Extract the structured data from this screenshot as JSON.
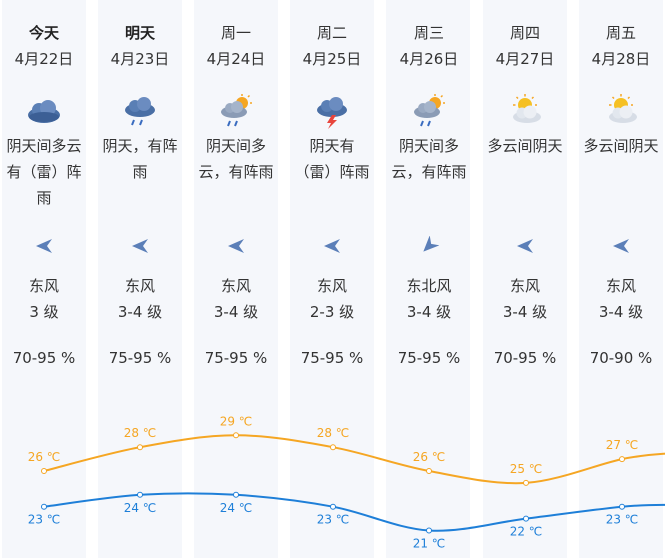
{
  "days": [
    {
      "day": "今天",
      "date": "4月22日",
      "desc": [
        "阴天间多云",
        "有（雷）阵",
        "雨"
      ],
      "weather_icon": "overcast-cloud-icon",
      "wind_dir": "东风",
      "wind_level": "3 级",
      "humidity": "70-95 %",
      "high": "26 ℃",
      "low": "23 ℃"
    },
    {
      "day": "明天",
      "date": "4月23日",
      "desc": [
        "阴天，有阵",
        "雨"
      ],
      "weather_icon": "rain-cloud-icon",
      "wind_dir": "东风",
      "wind_level": "3-4 级",
      "humidity": "75-95 %",
      "high": "28 ℃",
      "low": "24 ℃"
    },
    {
      "day": "周一",
      "date": "4月24日",
      "desc": [
        "阴天间多",
        "云，有阵雨"
      ],
      "weather_icon": "sun-cloud-rain-icon",
      "wind_dir": "东风",
      "wind_level": "3-4 级",
      "humidity": "75-95 %",
      "high": "29 ℃",
      "low": "24 ℃"
    },
    {
      "day": "周二",
      "date": "4月25日",
      "desc": [
        "阴天有",
        "（雷）阵雨"
      ],
      "weather_icon": "thunder-cloud-icon",
      "wind_dir": "东风",
      "wind_level": "2-3 级",
      "humidity": "75-95 %",
      "high": "28 ℃",
      "low": "23 ℃"
    },
    {
      "day": "周三",
      "date": "4月26日",
      "desc": [
        "阴天间多",
        "云，有阵雨"
      ],
      "weather_icon": "sun-cloud-rain-icon",
      "wind_dir": "东北风",
      "wind_level": "3-4 级",
      "humidity": "75-95 %",
      "high": "26 ℃",
      "low": "21 ℃"
    },
    {
      "day": "周四",
      "date": "4月27日",
      "desc": [
        "多云间阴天"
      ],
      "weather_icon": "partly-cloudy-icon",
      "wind_dir": "东风",
      "wind_level": "3-4 级",
      "humidity": "70-95 %",
      "high": "25 ℃",
      "low": "22 ℃"
    },
    {
      "day": "周五",
      "date": "4月28日",
      "desc": [
        "多云间阴天"
      ],
      "weather_icon": "partly-cloudy-icon",
      "wind_dir": "东风",
      "wind_level": "3-4 级",
      "humidity": "70-90 %",
      "high": "27 ℃",
      "low": "23 ℃"
    }
  ],
  "chart_data": {
    "type": "line",
    "categories": [
      "4月22日",
      "4月23日",
      "4月24日",
      "4月25日",
      "4月26日",
      "4月27日",
      "4月28日"
    ],
    "series": [
      {
        "values": [
          26,
          28,
          29,
          28,
          26,
          25,
          27
        ],
        "color": "#f5a623"
      },
      {
        "values": [
          23,
          24,
          24,
          23,
          21,
          22,
          23
        ],
        "color": "#1e7fd8"
      }
    ]
  },
  "colors": {
    "high_line": "#f5a623",
    "low_line": "#1e7fd8",
    "column_bg": "#f5f7fb",
    "wind_arrow": "#5b7fb8"
  }
}
